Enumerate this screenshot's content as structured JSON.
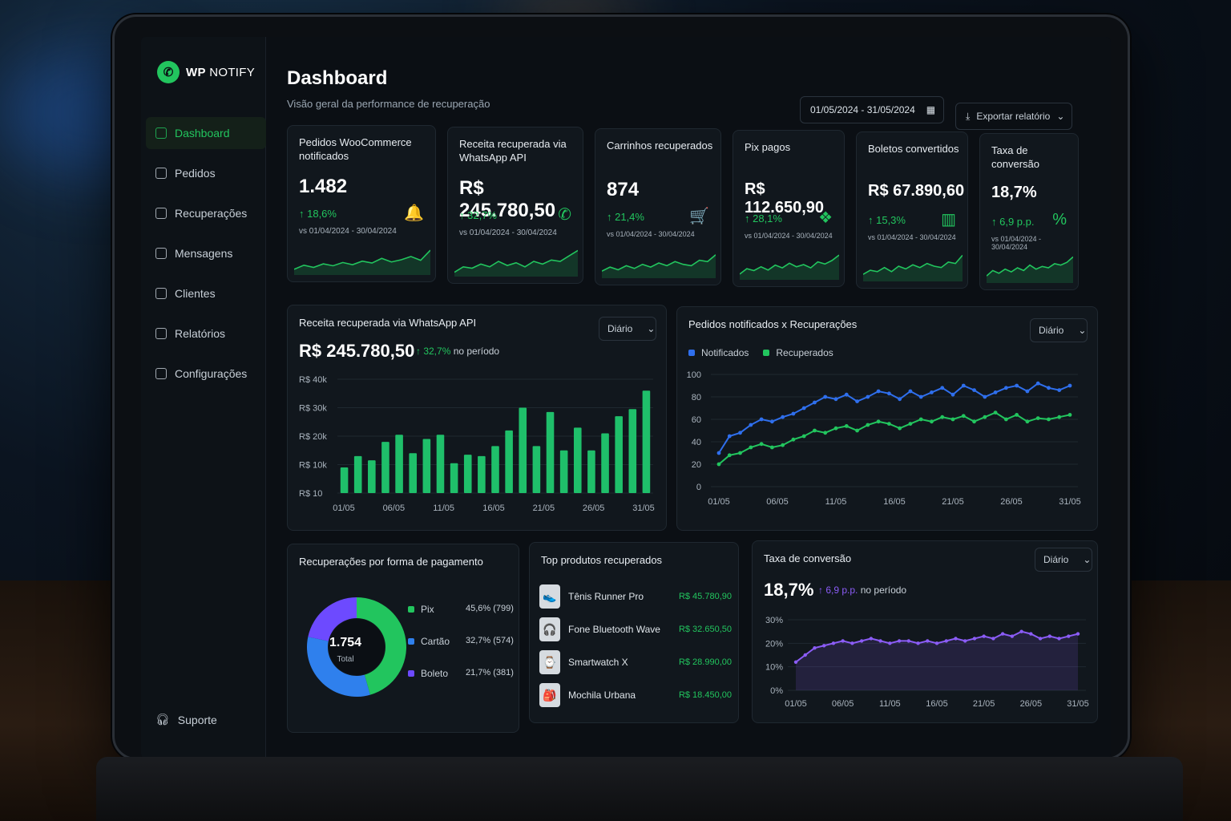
{
  "app": {
    "logo_bold": "WP",
    "logo_text": "NOTIFY"
  },
  "nav": [
    {
      "label": "Dashboard",
      "icon": "home-icon"
    },
    {
      "label": "Pedidos",
      "icon": "bag-icon"
    },
    {
      "label": "Recuperações",
      "icon": "refresh-icon"
    },
    {
      "label": "Mensagens",
      "icon": "chat-icon"
    },
    {
      "label": "Clientes",
      "icon": "users-icon"
    },
    {
      "label": "Relatórios",
      "icon": "report-icon"
    },
    {
      "label": "Configurações",
      "icon": "gear-icon"
    }
  ],
  "support": "Suporte",
  "header": {
    "title": "Dashboard",
    "subtitle": "Visão geral da performance de recuperação",
    "date_range": "01/05/2024 - 31/05/2024",
    "export": "Exportar relatório"
  },
  "kpis": [
    {
      "title": "Pedidos WooCommerce notificados",
      "value": "1.482",
      "change": "↑ 18,6%",
      "vs": "vs 01/04/2024 - 30/04/2024",
      "icon": "bell-icon",
      "glyph": "🔔",
      "spark": [
        0.15,
        0.3,
        0.22,
        0.35,
        0.28,
        0.4,
        0.32,
        0.45,
        0.38,
        0.55,
        0.42,
        0.5,
        0.62,
        0.48,
        0.85
      ]
    },
    {
      "title": "Receita recuperada via WhatsApp API",
      "value": "R$ 245.780,50",
      "change": "↑ 32,7%",
      "vs": "vs 01/04/2024 - 30/04/2024",
      "icon": "whatsapp-icon",
      "glyph": "✆",
      "spark": [
        0.1,
        0.3,
        0.25,
        0.4,
        0.3,
        0.5,
        0.35,
        0.45,
        0.3,
        0.5,
        0.4,
        0.55,
        0.5,
        0.7,
        0.9
      ]
    },
    {
      "title": "Carrinhos recuperados",
      "value": "874",
      "change": "↑ 21,4%",
      "vs": "vs 01/04/2024 - 30/04/2024",
      "icon": "cart-icon",
      "glyph": "🛒",
      "spark": [
        0.2,
        0.35,
        0.25,
        0.4,
        0.3,
        0.45,
        0.35,
        0.5,
        0.4,
        0.55,
        0.45,
        0.4,
        0.6,
        0.55,
        0.8
      ]
    },
    {
      "title": "Pix pagos",
      "value": "R$ 112.650,90",
      "change": "↑ 28,1%",
      "vs": "vs 01/04/2024 - 30/04/2024",
      "icon": "pix-icon",
      "glyph": "❖",
      "spark": [
        0.15,
        0.35,
        0.28,
        0.42,
        0.3,
        0.48,
        0.38,
        0.55,
        0.42,
        0.5,
        0.38,
        0.6,
        0.52,
        0.65,
        0.85
      ]
    },
    {
      "title": "Boletos convertidos",
      "value": "R$ 67.890,60",
      "change": "↑ 15,3%",
      "vs": "vs 01/04/2024 - 30/04/2024",
      "icon": "barcode-icon",
      "glyph": "▥",
      "spark": [
        0.2,
        0.35,
        0.3,
        0.45,
        0.3,
        0.5,
        0.4,
        0.55,
        0.45,
        0.6,
        0.5,
        0.45,
        0.65,
        0.6,
        0.9
      ]
    },
    {
      "title": "Taxa de conversão",
      "value": "18,7%",
      "change": "↑ 6,9 p.p.",
      "vs": "vs 01/04/2024 - 30/04/2024",
      "icon": "percent-icon",
      "glyph": "%",
      "spark": [
        0.2,
        0.4,
        0.3,
        0.45,
        0.35,
        0.5,
        0.4,
        0.6,
        0.45,
        0.55,
        0.5,
        0.65,
        0.6,
        0.7,
        0.9
      ]
    }
  ],
  "revenue": {
    "title": "Receita recuperada via WhatsApp API",
    "period": "Diário",
    "value": "R$ 245.780,50",
    "change": "↑ 32,7%",
    "change_suffix": "no período"
  },
  "orders": {
    "title": "Pedidos notificados x Recuperações",
    "period": "Diário",
    "legend": [
      "Notificados",
      "Recuperados"
    ]
  },
  "payments": {
    "title": "Recuperações por forma de pagamento",
    "total": "1.754",
    "total_label": "Total",
    "items": [
      {
        "label": "Pix",
        "value": "45,6% (799)",
        "pct": 45.6,
        "color": "#22c55e"
      },
      {
        "label": "Cartão",
        "value": "32,7% (574)",
        "pct": 32.7,
        "color": "#2f80ed"
      },
      {
        "label": "Boleto",
        "value": "21,7% (381)",
        "pct": 21.7,
        "color": "#6d4aff"
      }
    ]
  },
  "products": {
    "title": "Top produtos recuperados",
    "items": [
      {
        "name": "Tênis Runner Pro",
        "value": "R$ 45.780,90",
        "icon": "shoe-icon",
        "glyph": "👟"
      },
      {
        "name": "Fone Bluetooth Wave",
        "value": "R$ 32.650,50",
        "icon": "headphones-icon",
        "glyph": "🎧"
      },
      {
        "name": "Smartwatch X",
        "value": "R$ 28.990,00",
        "icon": "watch-icon",
        "glyph": "⌚"
      },
      {
        "name": "Mochila Urbana",
        "value": "R$ 18.450,00",
        "icon": "backpack-icon",
        "glyph": "🎒"
      }
    ]
  },
  "conversion": {
    "title": "Taxa de conversão",
    "period": "Diário",
    "value": "18,7%",
    "change": "↑ 6,9 p.p.",
    "change_suffix": "no período"
  },
  "chart_data": [
    {
      "type": "bar",
      "title": "Receita recuperada via WhatsApp API",
      "y_ticks": [
        "R$ 10",
        "R$ 10k",
        "R$ 20k",
        "R$ 30k",
        "R$ 40k"
      ],
      "x_ticks": [
        "01/05",
        "06/05",
        "11/05",
        "16/05",
        "21/05",
        "26/05",
        "31/05"
      ],
      "ylim": [
        0,
        40000
      ],
      "series": [
        {
          "values": [
            9000,
            13000,
            11500,
            18000,
            20500,
            14000,
            19000,
            20500,
            10500,
            13500,
            13000,
            16500,
            22000,
            30000,
            16500,
            28500,
            15000,
            23000,
            15000,
            21000,
            27000,
            29500,
            36000
          ]
        }
      ]
    },
    {
      "type": "line",
      "title": "Pedidos notificados x Recuperações",
      "y_ticks": [
        "0",
        "20",
        "40",
        "60",
        "80",
        "100"
      ],
      "x_ticks": [
        "01/05",
        "06/05",
        "11/05",
        "16/05",
        "21/05",
        "26/05",
        "31/05"
      ],
      "ylim": [
        0,
        100
      ],
      "series": [
        {
          "name": "Notificados",
          "color": "#2f6fed",
          "values": [
            30,
            45,
            48,
            55,
            60,
            58,
            62,
            65,
            70,
            75,
            80,
            78,
            82,
            76,
            80,
            85,
            83,
            78,
            85,
            80,
            84,
            88,
            82,
            90,
            86,
            80,
            84,
            88,
            90,
            85,
            92,
            88,
            86,
            90
          ]
        },
        {
          "name": "Recuperados",
          "color": "#22c55e",
          "values": [
            20,
            28,
            30,
            35,
            38,
            35,
            37,
            42,
            45,
            50,
            48,
            52,
            54,
            50,
            55,
            58,
            56,
            52,
            56,
            60,
            58,
            62,
            60,
            63,
            58,
            62,
            66,
            60,
            64,
            58,
            61,
            60,
            62,
            64
          ]
        }
      ]
    },
    {
      "type": "line",
      "title": "Taxa de conversão",
      "y_ticks": [
        "0%",
        "10%",
        "20%",
        "30%"
      ],
      "x_ticks": [
        "01/05",
        "06/05",
        "11/05",
        "16/05",
        "21/05",
        "26/05",
        "31/05"
      ],
      "ylim": [
        0,
        30
      ],
      "series": [
        {
          "color": "#8b5cf6",
          "values": [
            12,
            15,
            18,
            19,
            20,
            21,
            20,
            21,
            22,
            21,
            20,
            21,
            21,
            20,
            21,
            20,
            21,
            22,
            21,
            22,
            23,
            22,
            24,
            23,
            25,
            24,
            22,
            23,
            22,
            23,
            24
          ]
        }
      ]
    }
  ]
}
